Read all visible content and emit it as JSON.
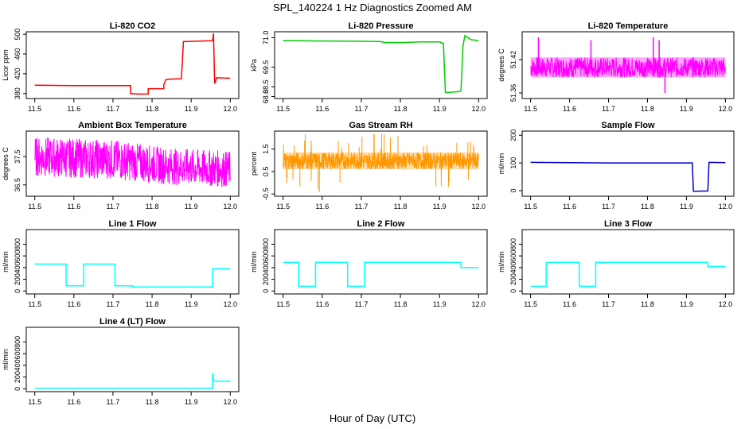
{
  "figure": {
    "title": "SPL_140224 1 Hz Diagnostics Zoomed AM",
    "xlabel": "Hour of Day (UTC)"
  },
  "chart_data": [
    {
      "type": "line",
      "title": "Li-820 CO2",
      "xlabel": "",
      "ylabel": "Licor ppm",
      "xlim": [
        11.5,
        12.0
      ],
      "ylim": [
        370,
        505
      ],
      "xticks": [
        "11.5",
        "11.6",
        "11.7",
        "11.8",
        "11.9",
        "12.0"
      ],
      "yticks": [
        380,
        420,
        460,
        500
      ],
      "series": [
        {
          "color": "#ff0000",
          "x": [
            11.5,
            11.6,
            11.745,
            11.745,
            11.765,
            11.79,
            11.79,
            11.83,
            11.83,
            11.835,
            11.84,
            11.84,
            11.875,
            11.88,
            11.88,
            11.955,
            11.957,
            11.96,
            11.965,
            12.0
          ],
          "y": [
            397,
            396,
            396,
            380,
            379,
            379,
            390,
            390,
            398,
            408,
            409,
            409,
            410,
            484,
            485,
            487,
            502,
            400,
            412,
            411
          ]
        }
      ]
    },
    {
      "type": "line",
      "title": "Li-820 Pressure",
      "xlabel": "",
      "ylabel": "kPa",
      "xlim": [
        11.5,
        12.0
      ],
      "ylim": [
        67.9,
        71.3
      ],
      "xticks": [
        "11.5",
        "11.6",
        "11.7",
        "11.8",
        "11.9",
        "12.0"
      ],
      "yticks": [
        "68.0",
        "68.5",
        "69.5",
        "71.0"
      ],
      "ytick_values": [
        68.0,
        68.5,
        69.5,
        71.0
      ],
      "series": [
        {
          "color": "#00cc00",
          "x": [
            11.5,
            11.6,
            11.7,
            11.75,
            11.76,
            11.8,
            11.85,
            11.9,
            11.91,
            11.915,
            11.95,
            11.955,
            11.96,
            11.965,
            11.98,
            12.0
          ],
          "y": [
            70.85,
            70.83,
            70.82,
            70.8,
            70.75,
            70.75,
            70.78,
            70.78,
            70.7,
            68.2,
            68.25,
            68.3,
            70.6,
            71.1,
            70.9,
            70.85
          ]
        }
      ]
    },
    {
      "type": "line",
      "title": "Li-820 Temperature",
      "xlabel": "",
      "ylabel": "degrees C",
      "xlim": [
        11.5,
        12.0
      ],
      "ylim": [
        51.35,
        51.47
      ],
      "xticks": [
        "11.5",
        "11.6",
        "11.7",
        "11.8",
        "11.9",
        "12.0"
      ],
      "yticks": [
        "51.36",
        "51.42"
      ],
      "ytick_values": [
        51.36,
        51.42
      ],
      "band": {
        "low": 51.388,
        "high": 51.424
      },
      "spikes": [
        {
          "x": 11.52,
          "y": 51.46
        },
        {
          "x": 11.655,
          "y": 51.455
        },
        {
          "x": 11.815,
          "y": 51.46
        },
        {
          "x": 11.83,
          "y": 51.455
        },
        {
          "x": 11.845,
          "y": 51.36
        }
      ],
      "series": [
        {
          "color": "#ff00ff",
          "x": [],
          "y": []
        }
      ]
    },
    {
      "type": "line",
      "title": "Ambient Box Temperature",
      "xlabel": "",
      "ylabel": "degrees C",
      "xlim": [
        11.5,
        12.0
      ],
      "ylim": [
        36.1,
        38.4
      ],
      "xticks": [
        "11.5",
        "11.6",
        "11.7",
        "11.8",
        "11.9",
        "12.0"
      ],
      "yticks": [
        "36.5",
        "37.5"
      ],
      "ytick_values": [
        36.5,
        37.5
      ],
      "band_profile": [
        {
          "x": 11.5,
          "low": 36.8,
          "high": 38.2
        },
        {
          "x": 11.7,
          "low": 36.7,
          "high": 38.1
        },
        {
          "x": 11.85,
          "low": 36.5,
          "high": 37.8
        },
        {
          "x": 12.0,
          "low": 36.4,
          "high": 37.7
        }
      ],
      "series": [
        {
          "color": "#ff00ff",
          "x": [],
          "y": []
        }
      ]
    },
    {
      "type": "line",
      "title": "Gas Stream RH",
      "xlabel": "",
      "ylabel": "percent",
      "xlim": [
        11.5,
        12.0
      ],
      "ylim": [
        -0.6,
        2.3
      ],
      "xticks": [
        "11.5",
        "11.6",
        "11.7",
        "11.8",
        "11.9",
        "12.0"
      ],
      "yticks": [
        "-0.5",
        "0.5",
        "1.5"
      ],
      "ytick_values": [
        -0.5,
        0.5,
        1.5
      ],
      "band": {
        "low": 0.6,
        "high": 1.35
      },
      "series": [
        {
          "color": "#ff9900",
          "x": [],
          "y": []
        }
      ]
    },
    {
      "type": "line",
      "title": "Sample Flow",
      "xlabel": "",
      "ylabel": "ml/min",
      "xlim": [
        11.5,
        12.0
      ],
      "ylim": [
        -20,
        215
      ],
      "xticks": [
        "11.5",
        "11.6",
        "11.7",
        "11.8",
        "11.9",
        "12.0"
      ],
      "yticks": [
        0,
        100,
        200
      ],
      "series": [
        {
          "color": "#0000cc",
          "x": [
            11.5,
            11.6,
            11.7,
            11.8,
            11.915,
            11.918,
            11.955,
            11.958,
            12.0
          ],
          "y": [
            102,
            101,
            100,
            100,
            100,
            -2,
            -1,
            102,
            101
          ]
        }
      ]
    },
    {
      "type": "line",
      "title": "Line 1 Flow",
      "xlabel": "",
      "ylabel": "ml/min",
      "xlim": [
        11.5,
        12.0
      ],
      "ylim": [
        -50,
        1050
      ],
      "xticks": [
        "11.5",
        "11.6",
        "11.7",
        "11.8",
        "11.9",
        "12.0"
      ],
      "yticks": [
        0,
        200,
        400,
        600,
        800
      ],
      "series": [
        {
          "color": "#00ffff",
          "x": [
            11.5,
            11.58,
            11.58,
            11.625,
            11.625,
            11.705,
            11.705,
            11.75,
            11.75,
            11.955,
            11.955,
            12.0
          ],
          "y": [
            460,
            460,
            90,
            90,
            460,
            460,
            90,
            90,
            70,
            70,
            380,
            380
          ]
        }
      ]
    },
    {
      "type": "line",
      "title": "Line 2 Flow",
      "xlabel": "",
      "ylabel": "ml/min",
      "xlim": [
        11.5,
        12.0
      ],
      "ylim": [
        -50,
        1050
      ],
      "xticks": [
        "11.5",
        "11.6",
        "11.7",
        "11.8",
        "11.9",
        "12.0"
      ],
      "yticks": [
        0,
        200,
        400,
        600,
        800
      ],
      "series": [
        {
          "color": "#00ffff",
          "x": [
            11.5,
            11.54,
            11.54,
            11.583,
            11.583,
            11.665,
            11.665,
            11.708,
            11.708,
            11.955,
            11.955,
            12.0
          ],
          "y": [
            490,
            490,
            80,
            80,
            490,
            490,
            80,
            80,
            490,
            490,
            400,
            400
          ]
        }
      ]
    },
    {
      "type": "line",
      "title": "Line 3 Flow",
      "xlabel": "",
      "ylabel": "ml/min",
      "xlim": [
        11.5,
        12.0
      ],
      "ylim": [
        -50,
        1050
      ],
      "xticks": [
        "11.5",
        "11.6",
        "11.7",
        "11.8",
        "11.9",
        "12.0"
      ],
      "yticks": [
        0,
        200,
        400,
        600,
        800
      ],
      "series": [
        {
          "color": "#00ffff",
          "x": [
            11.5,
            11.54,
            11.54,
            11.625,
            11.625,
            11.667,
            11.667,
            11.955,
            11.955,
            12.0
          ],
          "y": [
            80,
            80,
            490,
            490,
            80,
            80,
            490,
            490,
            420,
            420
          ]
        }
      ]
    },
    {
      "type": "line",
      "title": "Line 4 (LT) Flow",
      "xlabel": "",
      "ylabel": "ml/min",
      "xlim": [
        11.5,
        12.0
      ],
      "ylim": [
        -50,
        1050
      ],
      "xticks": [
        "11.5",
        "11.6",
        "11.7",
        "11.8",
        "11.9",
        "12.0"
      ],
      "yticks": [
        0,
        200,
        400,
        600,
        800
      ],
      "series": [
        {
          "color": "#00ffff",
          "x": [
            11.5,
            11.955,
            11.955,
            11.958,
            11.96,
            12.0
          ],
          "y": [
            10,
            10,
            270,
            130,
            130,
            130
          ]
        }
      ]
    }
  ]
}
